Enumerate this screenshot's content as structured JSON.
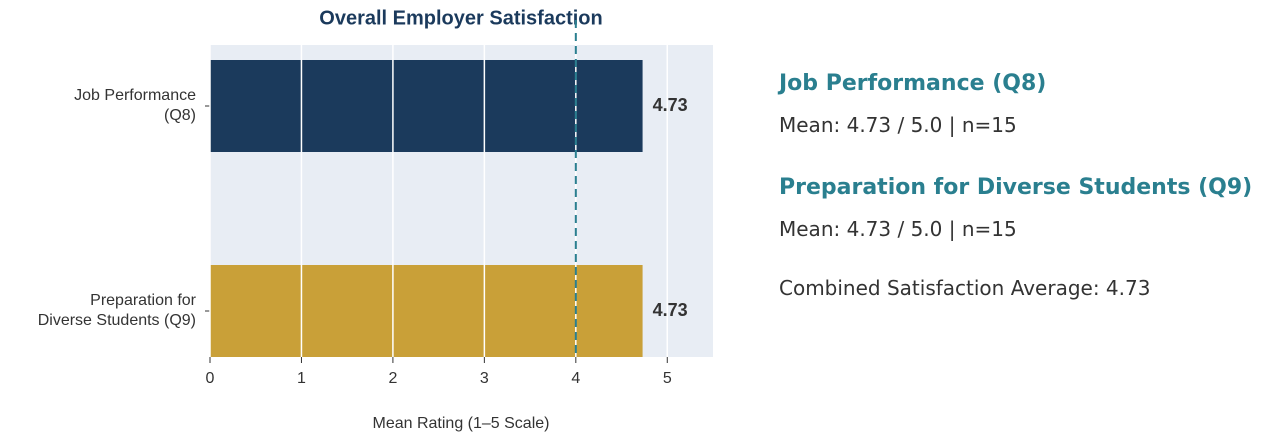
{
  "chart_data": {
    "type": "barh",
    "title": "Overall Employer Satisfaction",
    "categories": [
      [
        "Job Performance",
        "(Q8)"
      ],
      [
        "Preparation for",
        "Diverse Students (Q9)"
      ]
    ],
    "values": [
      4.73,
      4.73
    ],
    "colors": [
      "#1b3a5c",
      "#c9a038"
    ],
    "xlabel": "Mean Rating (1–5 Scale)",
    "xlim": [
      0,
      5.5
    ],
    "xticks": [
      0,
      1,
      2,
      3,
      4,
      5
    ],
    "grid": true,
    "reference_line": {
      "value": 4,
      "color": "#2a7f8f"
    }
  },
  "panel": {
    "items": [
      {
        "heading": "Job Performance (Q8)",
        "text": "Mean: 4.73 / 5.0 | n=15"
      },
      {
        "heading": "Preparation for Diverse Students (Q9)",
        "text": "Mean: 4.73 / 5.0 | n=15"
      }
    ],
    "footer": "Combined Satisfaction Average: 4.73"
  }
}
